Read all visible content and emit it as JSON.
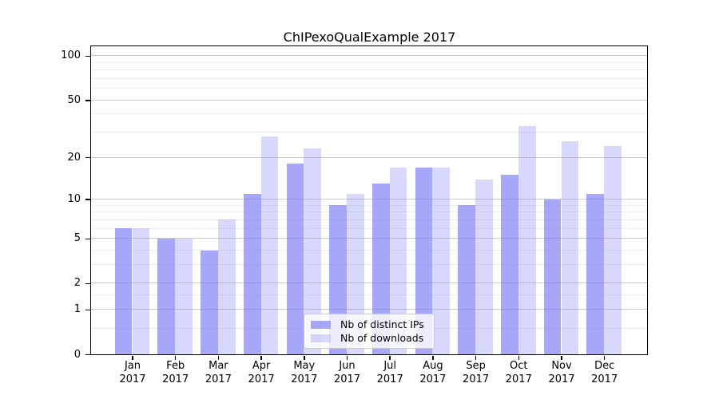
{
  "title": "ChIPexoQualExample 2017",
  "axes": {
    "y_tick_labels": [
      "100",
      "50",
      "20",
      "10",
      "5",
      "2",
      "1",
      "0"
    ],
    "y_tick_values": [
      100,
      50,
      20,
      10,
      5,
      2,
      1,
      0
    ],
    "x_months": [
      "Jan",
      "Feb",
      "Mar",
      "Apr",
      "May",
      "Jun",
      "Jul",
      "Aug",
      "Sep",
      "Oct",
      "Nov",
      "Dec"
    ],
    "x_year": "2017"
  },
  "legend": {
    "items": [
      {
        "label": "Nb of distinct IPs",
        "color": "rgba(122,122,246,0.66)"
      },
      {
        "label": "Nb of downloads",
        "color": "rgba(122,122,246,0.29)"
      }
    ]
  },
  "colors": {
    "bar_dark": "rgba(122,122,246,0.66)",
    "bar_light": "rgba(122,122,246,0.29)",
    "major_grid": "#c9c9c9",
    "minor_grid": "#ededed",
    "spine": "#000000",
    "background": "#ffffff"
  },
  "chart_data": {
    "type": "bar",
    "title": "ChIPexoQualExample 2017",
    "categories": [
      "Jan 2017",
      "Feb 2017",
      "Mar 2017",
      "Apr 2017",
      "May 2017",
      "Jun 2017",
      "Jul 2017",
      "Aug 2017",
      "Sep 2017",
      "Oct 2017",
      "Nov 2017",
      "Dec 2017"
    ],
    "series": [
      {
        "name": "Nb of distinct IPs",
        "values": [
          6,
          5,
          4,
          11,
          18,
          9,
          13,
          17,
          9,
          15,
          10,
          11
        ]
      },
      {
        "name": "Nb of downloads",
        "values": [
          6,
          5,
          7,
          28,
          23,
          11,
          17,
          17,
          14,
          33,
          26,
          24
        ]
      }
    ],
    "xlabel": "",
    "ylabel": "",
    "y_scale": "log1p",
    "ylim": [
      0,
      116
    ],
    "y_major_ticks": [
      0,
      1,
      2,
      5,
      10,
      20,
      50,
      100
    ],
    "y_minor_gridlines": [
      0.5,
      1.5,
      3,
      4,
      6,
      7,
      8,
      9,
      30,
      40,
      60,
      70,
      80,
      90
    ],
    "grid": true,
    "legend_position": "lower center inside"
  }
}
